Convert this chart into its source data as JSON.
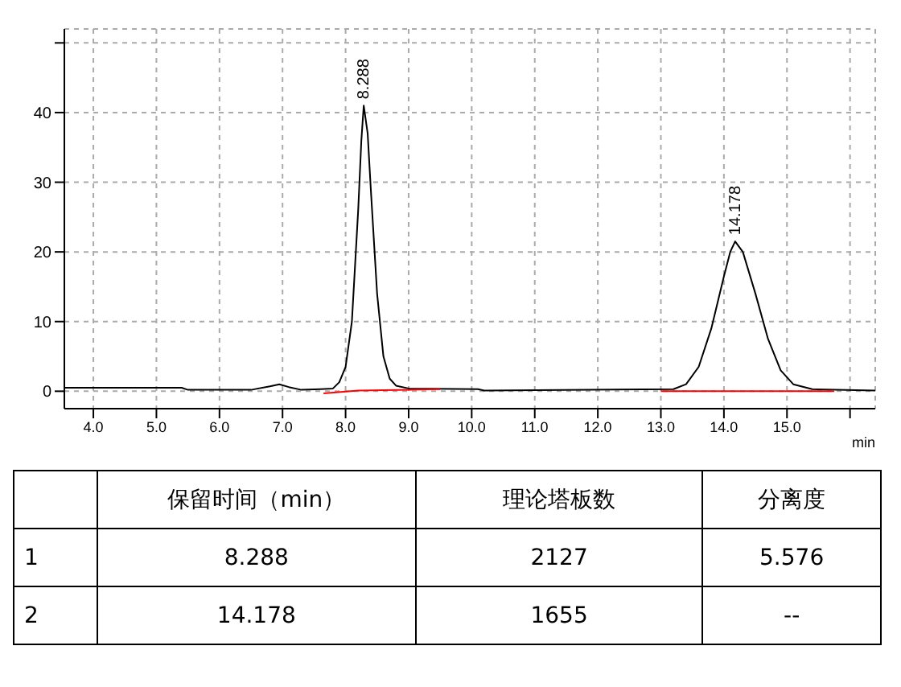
{
  "chart_data": {
    "type": "line",
    "xlabel": "min",
    "xlim": [
      3.54,
      16.4
    ],
    "xticks": [
      {
        "value": 4,
        "label": "4.0"
      },
      {
        "value": 5,
        "label": "5.0"
      },
      {
        "value": 6,
        "label": "6.0"
      },
      {
        "value": 7,
        "label": "7.0"
      },
      {
        "value": 8,
        "label": "8.0"
      },
      {
        "value": 9,
        "label": "9.0"
      },
      {
        "value": 10,
        "label": "10.0"
      },
      {
        "value": 11,
        "label": "11.0"
      },
      {
        "value": 12,
        "label": "12.0"
      },
      {
        "value": 13,
        "label": "13.0"
      },
      {
        "value": 14,
        "label": "14.0"
      },
      {
        "value": 15,
        "label": "15.0"
      },
      {
        "value": 16,
        "label": null
      }
    ],
    "ylim": [
      -2.5,
      52
    ],
    "yticks": [
      0,
      10,
      20,
      30,
      40,
      {
        "value": 50,
        "label": null
      }
    ],
    "grid": true,
    "legend": false,
    "marker": "none",
    "line_style": "solid",
    "series": [
      {
        "color": "#000000",
        "x": [
          3.54,
          5.4,
          5.5,
          6.5,
          6.8,
          6.95,
          7.1,
          7.3,
          7.6,
          7.8,
          7.9,
          8.0,
          8.1,
          8.2,
          8.25,
          8.288,
          8.35,
          8.4,
          8.5,
          8.6,
          8.7,
          8.8,
          9.0,
          10.1,
          10.2,
          13.2,
          13.4,
          13.6,
          13.8,
          14.0,
          14.1,
          14.178,
          14.3,
          14.5,
          14.7,
          14.9,
          15.1,
          15.4,
          16.4
        ],
        "values": [
          0.5,
          0.5,
          0.2,
          0.2,
          0.7,
          1,
          0.6,
          0.2,
          0.3,
          0.4,
          1.3,
          3.5,
          10,
          26,
          36,
          41,
          37,
          29,
          14,
          5,
          1.8,
          0.8,
          0.4,
          0.3,
          0.1,
          0.3,
          1,
          3.5,
          9,
          16.5,
          20,
          21.5,
          20,
          14,
          7.5,
          3,
          1,
          0.3,
          0.1
        ]
      },
      {
        "color": "#ff0000",
        "x": [
          7.65,
          8.2,
          9.5
        ],
        "values": [
          -0.3,
          0.1,
          0.3
        ]
      },
      {
        "color": "#ff0000",
        "x": [
          13.0,
          15.75
        ],
        "values": [
          0,
          0
        ]
      }
    ],
    "annotations": [
      {
        "text": "8.288",
        "x": 8.288,
        "y": 41
      },
      {
        "text": "14.178",
        "x": 14.178,
        "y": 21.5
      },
      "保留时间（min）",
      "理论塔板数",
      "分离度",
      "1",
      "8.288",
      "2127",
      "5.576",
      "2",
      "14.178",
      "1655",
      "--"
    ]
  }
}
